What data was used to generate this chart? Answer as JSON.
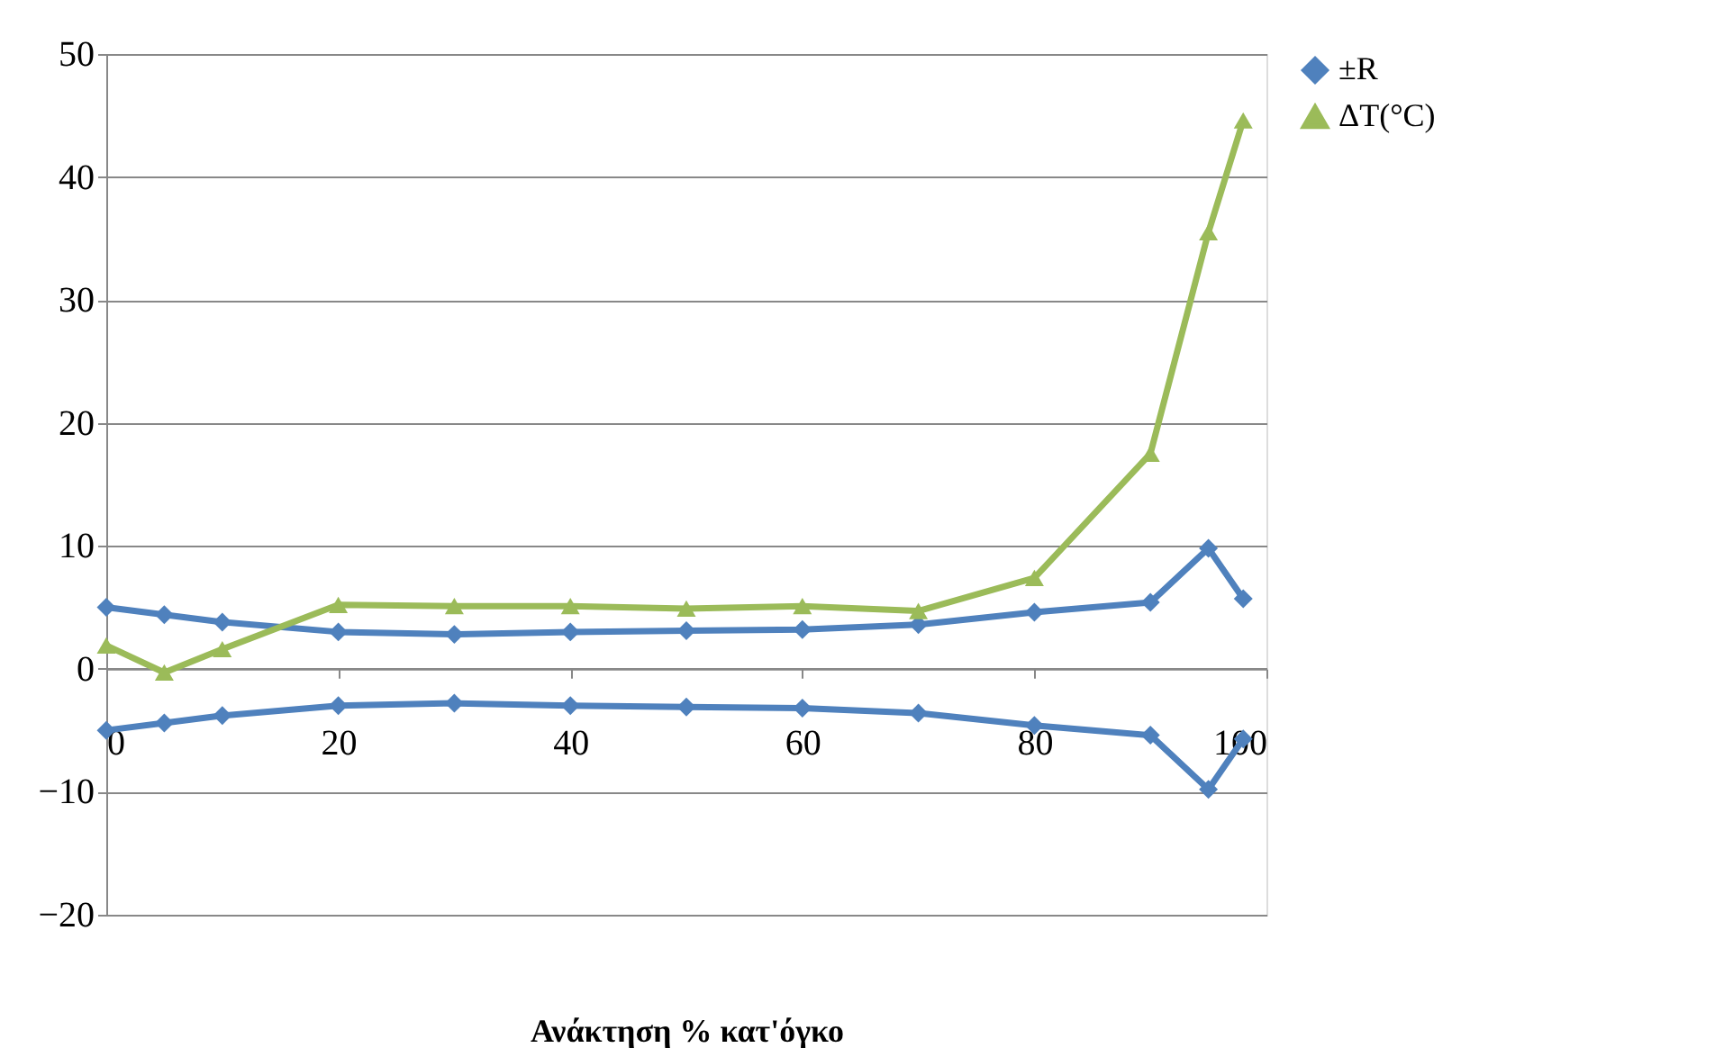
{
  "chart_data": {
    "type": "line",
    "xlabel": "Ανάκτηση % κατ'όγκο",
    "x": [
      0,
      5,
      10,
      20,
      30,
      40,
      50,
      60,
      70,
      80,
      90,
      95,
      98
    ],
    "series": [
      {
        "name": "±R",
        "color": "#4f81bd",
        "marker": "diamond",
        "values": [
          5.0,
          4.4,
          3.8,
          3.0,
          2.8,
          3.0,
          3.1,
          3.2,
          3.6,
          4.6,
          5.4,
          9.8,
          5.7
        ]
      },
      {
        "color": "#4f81bd",
        "marker": "diamond",
        "values": [
          -5.0,
          -4.4,
          -3.8,
          -3.0,
          -2.8,
          -3.0,
          -3.1,
          -3.2,
          -3.6,
          -4.6,
          -5.4,
          -9.8,
          -5.7
        ]
      },
      {
        "name": "ΔT(°C)",
        "color": "#9bbb59",
        "marker": "triangle",
        "values": [
          1.9,
          -0.3,
          1.6,
          5.2,
          5.1,
          5.1,
          4.9,
          5.1,
          4.7,
          7.4,
          17.5,
          35.5,
          44.6
        ]
      }
    ],
    "xlim": [
      0,
      100
    ],
    "xticks": [
      0,
      20,
      40,
      60,
      80,
      100
    ],
    "ylim": [
      -20,
      50
    ],
    "yticks": [
      -20,
      -10,
      0,
      10,
      20,
      30,
      40,
      50
    ],
    "grid": "y",
    "legend": "right",
    "line_style": "solid"
  }
}
